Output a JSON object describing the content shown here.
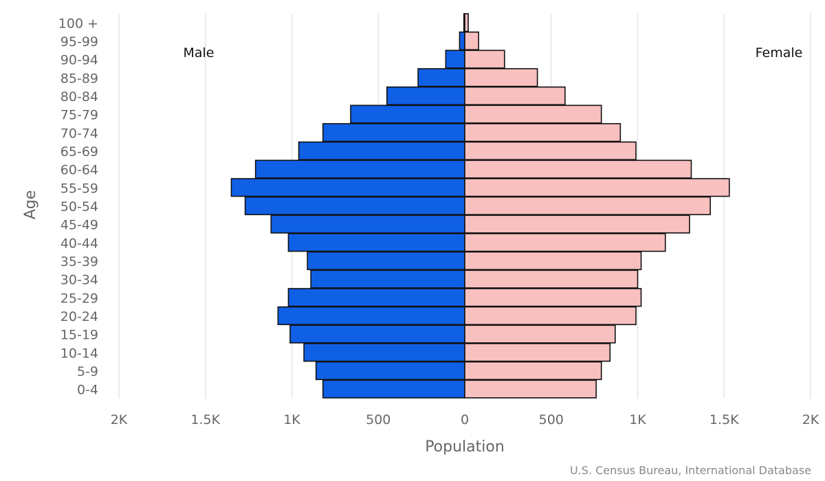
{
  "chart_data": {
    "type": "bar",
    "orientation": "horizontal-diverging",
    "categories": [
      "0-4",
      "5-9",
      "10-14",
      "15-19",
      "20-24",
      "25-29",
      "30-34",
      "35-39",
      "40-44",
      "45-49",
      "50-54",
      "55-59",
      "60-64",
      "65-69",
      "70-74",
      "75-79",
      "80-84",
      "85-89",
      "90-94",
      "95-99",
      "100 +"
    ],
    "series": [
      {
        "name": "Male",
        "color": "#1060e6",
        "values": [
          820,
          860,
          930,
          1010,
          1080,
          1020,
          890,
          910,
          1020,
          1120,
          1270,
          1350,
          1210,
          960,
          820,
          660,
          450,
          270,
          110,
          30,
          5
        ]
      },
      {
        "name": "Female",
        "color": "#f9c0c0",
        "values": [
          760,
          790,
          840,
          870,
          990,
          1020,
          1000,
          1020,
          1160,
          1300,
          1420,
          1530,
          1310,
          990,
          900,
          790,
          580,
          420,
          230,
          80,
          20
        ]
      }
    ],
    "xlabel": "Population",
    "ylabel": "Age",
    "xlim": [
      -2000,
      2000
    ],
    "xticks": [
      {
        "value": -2000,
        "label": "2K"
      },
      {
        "value": -1500,
        "label": "1.5K"
      },
      {
        "value": -1000,
        "label": "1K"
      },
      {
        "value": -500,
        "label": "500"
      },
      {
        "value": 0,
        "label": "0"
      },
      {
        "value": 500,
        "label": "500"
      },
      {
        "value": 1000,
        "label": "1K"
      },
      {
        "value": 1500,
        "label": "1.5K"
      },
      {
        "value": 2000,
        "label": "2K"
      }
    ],
    "grid": "vertical",
    "side_labels": {
      "left": "Male",
      "right": "Female"
    },
    "credit": "U.S. Census Bureau, International Database"
  }
}
